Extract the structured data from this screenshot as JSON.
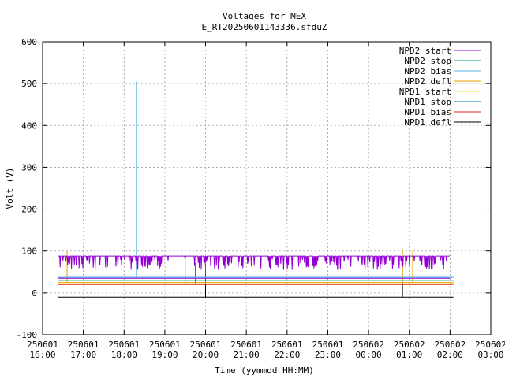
{
  "chart_data": {
    "type": "line",
    "title": "Voltages for MEX",
    "subtitle": "E_RT20250601143336.sfduZ",
    "xlabel": "Time (yymmdd HH:MM)",
    "ylabel": "Volt (V)",
    "ylim": [
      -100,
      600
    ],
    "yticks": [
      -100,
      0,
      100,
      200,
      300,
      400,
      500,
      600
    ],
    "xlim": [
      "2025-06-01 16:00",
      "2025-06-02 03:00"
    ],
    "xticks": [
      {
        "date": "250601",
        "time": "16:00"
      },
      {
        "date": "250601",
        "time": "17:00"
      },
      {
        "date": "250601",
        "time": "18:00"
      },
      {
        "date": "250601",
        "time": "19:00"
      },
      {
        "date": "250601",
        "time": "20:00"
      },
      {
        "date": "250601",
        "time": "21:00"
      },
      {
        "date": "250601",
        "time": "22:00"
      },
      {
        "date": "250601",
        "time": "23:00"
      },
      {
        "date": "250602",
        "time": "00:00"
      },
      {
        "date": "250602",
        "time": "01:00"
      },
      {
        "date": "250602",
        "time": "02:00"
      },
      {
        "date": "250602",
        "time": "03:00"
      }
    ],
    "grid": true,
    "legend_position": "top-right",
    "series": [
      {
        "name": "NPD2 start",
        "color": "#9400d3",
        "base": 35,
        "high": 88,
        "start": "16:23",
        "end": "02:00"
      },
      {
        "name": "NPD2 stop",
        "color": "#009e73",
        "base": 30,
        "start": "16:23",
        "end": "02:05"
      },
      {
        "name": "NPD2 bias",
        "color": "#56b4e9",
        "base": 37,
        "start": "16:23",
        "end": "02:05",
        "spikes": [
          {
            "time": "18:18",
            "value": 505
          }
        ]
      },
      {
        "name": "NPD2 defl",
        "color": "#e69f00",
        "base": 25,
        "start": "16:23",
        "end": "02:05",
        "spikes": [
          {
            "time": "16:36",
            "value": 100
          },
          {
            "time": "00:50",
            "value": 105
          },
          {
            "time": "01:05",
            "value": 100
          }
        ]
      },
      {
        "name": "NPD1 start",
        "color": "#f0e442",
        "base": 22,
        "start": "16:23",
        "end": "02:05"
      },
      {
        "name": "NPD1 stop",
        "color": "#0072b2",
        "base": 40,
        "start": "16:23",
        "end": "02:05"
      },
      {
        "name": "NPD1 bias",
        "color": "#e51e10",
        "base": 20,
        "start": "16:23",
        "end": "02:05",
        "spikes": [
          {
            "time": "19:30",
            "value": 75
          },
          {
            "time": "19:45",
            "value": 72
          },
          {
            "time": "20:00",
            "value": 70
          }
        ]
      },
      {
        "name": "NPD1 defl",
        "color": "#000000",
        "base": -10,
        "start": "16:23",
        "end": "02:05",
        "spikes": [
          {
            "time": "20:00",
            "value": 70
          },
          {
            "time": "00:50",
            "value": 65
          },
          {
            "time": "01:45",
            "value": 70
          }
        ]
      }
    ]
  }
}
